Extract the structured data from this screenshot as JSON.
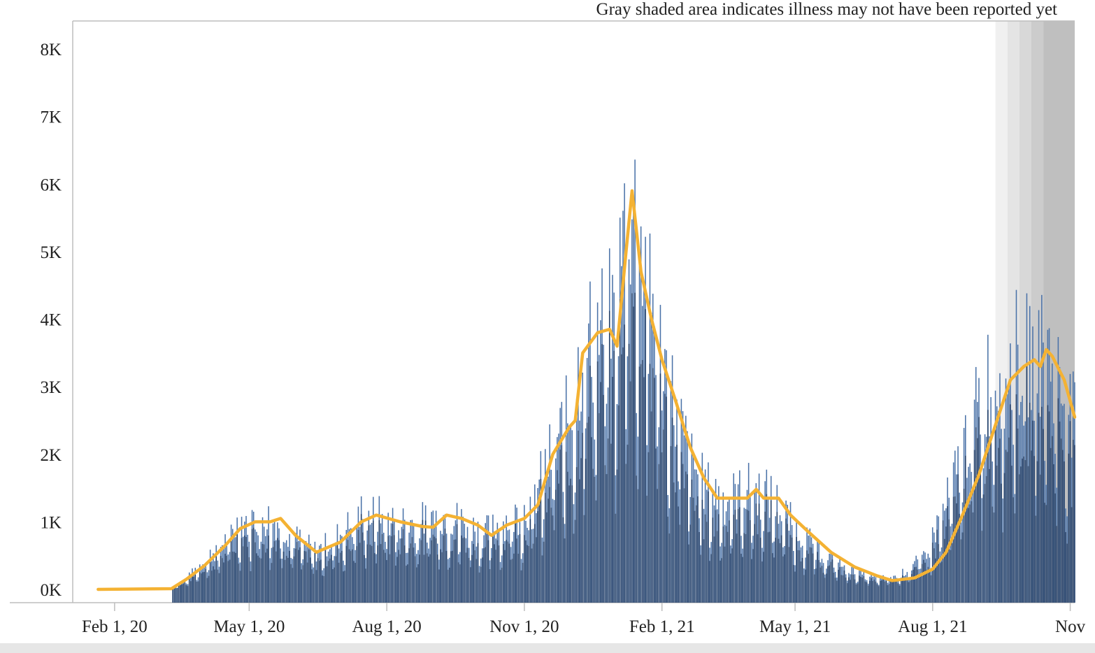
{
  "note": "Gray shaded area indicates illness may not have been reported yet",
  "chart_data": {
    "type": "bar",
    "title": "",
    "xlabel": "",
    "ylabel": "",
    "ylim": [
      0,
      8000
    ],
    "y_ticks": [
      {
        "value": 0,
        "label": "0K"
      },
      {
        "value": 1000,
        "label": "1K"
      },
      {
        "value": 2000,
        "label": "2K"
      },
      {
        "value": 3000,
        "label": "3K"
      },
      {
        "value": 4000,
        "label": "4K"
      },
      {
        "value": 5000,
        "label": "5K"
      },
      {
        "value": 6000,
        "label": "6K"
      },
      {
        "value": 7000,
        "label": "7K"
      },
      {
        "value": 8000,
        "label": "8K"
      }
    ],
    "x_range": [
      "2020-01-04",
      "2021-11-04"
    ],
    "x_ticks": [
      {
        "date": "2020-02-01",
        "label": "Feb 1, 20"
      },
      {
        "date": "2020-05-01",
        "label": "May 1, 20"
      },
      {
        "date": "2020-08-01",
        "label": "Aug 1, 20"
      },
      {
        "date": "2020-11-01",
        "label": "Nov 1, 20"
      },
      {
        "date": "2021-02-01",
        "label": "Feb 1, 21"
      },
      {
        "date": "2021-05-01",
        "label": "May 1, 21"
      },
      {
        "date": "2021-08-01",
        "label": "Aug 1, 21"
      },
      {
        "date": "2021-11-01",
        "label": "Nov"
      }
    ],
    "colors": {
      "bar_dark": "#1f3c66",
      "bar_light": "#4a72a8",
      "average_line": "#f4b233",
      "shade_levels": [
        "#f0f0f0",
        "#e4e4e4",
        "#d8d8d8",
        "#cccccc",
        "#bfbfbf"
      ]
    },
    "shaded_dates": [
      "2021-09-12",
      "2021-09-20",
      "2021-09-28",
      "2021-10-06",
      "2021-10-14"
    ],
    "series": [
      {
        "kind": "bar",
        "values_at_dates": [
          [
            "2020-03-10",
            0
          ],
          [
            "2020-03-20",
            150
          ],
          [
            "2020-04-01",
            420
          ],
          [
            "2020-04-15",
            700
          ],
          [
            "2020-04-25",
            1000
          ],
          [
            "2020-05-10",
            1050
          ],
          [
            "2020-05-20",
            1000
          ],
          [
            "2020-06-01",
            750
          ],
          [
            "2020-06-15",
            550
          ],
          [
            "2020-07-01",
            800
          ],
          [
            "2020-07-15",
            1100
          ],
          [
            "2020-08-01",
            1050
          ],
          [
            "2020-08-20",
            950
          ],
          [
            "2020-09-05",
            1100
          ],
          [
            "2020-09-20",
            1000
          ],
          [
            "2020-10-05",
            820
          ],
          [
            "2020-10-20",
            1000
          ],
          [
            "2020-11-05",
            1200
          ],
          [
            "2020-11-20",
            2000
          ],
          [
            "2020-12-01",
            2500
          ],
          [
            "2020-12-10",
            3500
          ],
          [
            "2020-12-25",
            3800
          ],
          [
            "2021-01-01",
            3950
          ],
          [
            "2021-01-10",
            5800
          ],
          [
            "2021-01-20",
            4800
          ],
          [
            "2021-02-01",
            3400
          ],
          [
            "2021-02-15",
            2200
          ],
          [
            "2021-03-01",
            1500
          ],
          [
            "2021-03-15",
            1300
          ],
          [
            "2021-04-01",
            1450
          ],
          [
            "2021-04-15",
            1350
          ],
          [
            "2021-05-01",
            900
          ],
          [
            "2021-05-20",
            500
          ],
          [
            "2021-06-10",
            250
          ],
          [
            "2021-06-25",
            150
          ],
          [
            "2021-07-10",
            200
          ],
          [
            "2021-07-25",
            450
          ],
          [
            "2021-08-10",
            1200
          ],
          [
            "2021-08-25",
            2300
          ],
          [
            "2021-09-10",
            3200
          ],
          [
            "2021-09-25",
            3400
          ],
          [
            "2021-10-10",
            3500
          ],
          [
            "2021-10-20",
            3300
          ],
          [
            "2021-11-04",
            2400
          ]
        ]
      },
      {
        "kind": "line",
        "values_at_dates": [
          [
            "2020-01-21",
            0
          ],
          [
            "2020-03-10",
            10
          ],
          [
            "2020-03-20",
            150
          ],
          [
            "2020-04-01",
            350
          ],
          [
            "2020-04-15",
            650
          ],
          [
            "2020-04-25",
            900
          ],
          [
            "2020-05-05",
            1000
          ],
          [
            "2020-05-15",
            1000
          ],
          [
            "2020-05-22",
            1050
          ],
          [
            "2020-06-01",
            800
          ],
          [
            "2020-06-15",
            550
          ],
          [
            "2020-07-01",
            700
          ],
          [
            "2020-07-15",
            1000
          ],
          [
            "2020-07-25",
            1100
          ],
          [
            "2020-08-10",
            1000
          ],
          [
            "2020-08-25",
            930
          ],
          [
            "2020-09-01",
            920
          ],
          [
            "2020-09-10",
            1100
          ],
          [
            "2020-09-20",
            1050
          ],
          [
            "2020-10-01",
            950
          ],
          [
            "2020-10-10",
            800
          ],
          [
            "2020-10-20",
            950
          ],
          [
            "2020-11-01",
            1050
          ],
          [
            "2020-11-10",
            1250
          ],
          [
            "2020-11-20",
            2000
          ],
          [
            "2020-12-01",
            2400
          ],
          [
            "2020-12-05",
            2500
          ],
          [
            "2020-12-10",
            3500
          ],
          [
            "2020-12-20",
            3800
          ],
          [
            "2020-12-28",
            3850
          ],
          [
            "2021-01-02",
            3600
          ],
          [
            "2021-01-08",
            5000
          ],
          [
            "2021-01-12",
            5900
          ],
          [
            "2021-01-18",
            4700
          ],
          [
            "2021-01-25",
            4000
          ],
          [
            "2021-02-01",
            3400
          ],
          [
            "2021-02-10",
            2800
          ],
          [
            "2021-02-20",
            2100
          ],
          [
            "2021-03-01",
            1650
          ],
          [
            "2021-03-10",
            1350
          ],
          [
            "2021-03-20",
            1350
          ],
          [
            "2021-03-30",
            1350
          ],
          [
            "2021-04-05",
            1480
          ],
          [
            "2021-04-10",
            1350
          ],
          [
            "2021-04-20",
            1350
          ],
          [
            "2021-04-28",
            1100
          ],
          [
            "2021-05-10",
            850
          ],
          [
            "2021-05-25",
            550
          ],
          [
            "2021-06-10",
            330
          ],
          [
            "2021-06-25",
            200
          ],
          [
            "2021-07-05",
            130
          ],
          [
            "2021-07-20",
            170
          ],
          [
            "2021-08-01",
            300
          ],
          [
            "2021-08-10",
            550
          ],
          [
            "2021-08-20",
            1050
          ],
          [
            "2021-09-01",
            1700
          ],
          [
            "2021-09-10",
            2300
          ],
          [
            "2021-09-22",
            3100
          ],
          [
            "2021-10-01",
            3300
          ],
          [
            "2021-10-08",
            3400
          ],
          [
            "2021-10-12",
            3300
          ],
          [
            "2021-10-16",
            3550
          ],
          [
            "2021-10-20",
            3450
          ],
          [
            "2021-10-28",
            3100
          ],
          [
            "2021-11-04",
            2550
          ]
        ]
      }
    ]
  }
}
